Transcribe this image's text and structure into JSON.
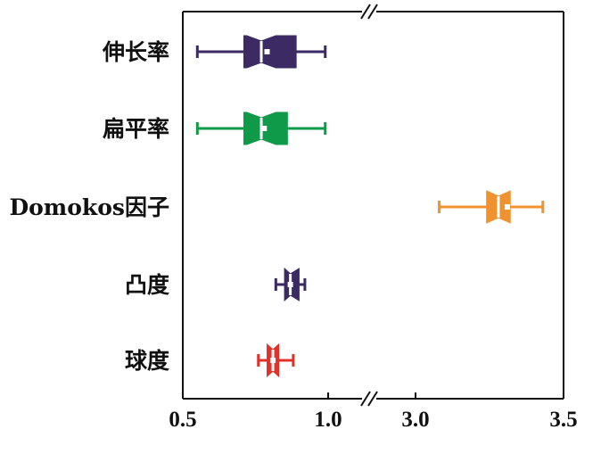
{
  "chart_data": {
    "type": "boxplot",
    "orientation": "horizontal",
    "title": "",
    "xlabel": "",
    "ylabel": "",
    "x_axis_break": {
      "from": 1.0,
      "to": 3.0
    },
    "x_segments": [
      {
        "range": [
          0.5,
          1.0
        ]
      },
      {
        "range": [
          3.0,
          3.5
        ]
      }
    ],
    "x_ticks": [
      {
        "value": 0.5,
        "label": "0.5"
      },
      {
        "value": 1.0,
        "label": "1.0"
      },
      {
        "value": 3.0,
        "label": "3.0"
      },
      {
        "value": 3.5,
        "label": "3.5"
      }
    ],
    "categories": [
      "伸长率",
      "扁平率",
      "Domokos因子",
      "凸度",
      "球度"
    ],
    "series": [
      {
        "category": "伸长率",
        "color": "#3b2a63",
        "min": 0.55,
        "q1": 0.71,
        "median": 0.77,
        "q3": 0.89,
        "max": 0.99,
        "mean": 0.79
      },
      {
        "category": "扁平率",
        "color": "#0f9a4a",
        "min": 0.55,
        "q1": 0.71,
        "median": 0.77,
        "q3": 0.86,
        "max": 0.99,
        "mean": 0.78
      },
      {
        "category": "Domokos因子",
        "color": "#f0922f",
        "min": 3.08,
        "q1": 3.24,
        "median": 3.28,
        "q3": 3.32,
        "max": 3.43,
        "mean": 3.31
      },
      {
        "category": "凸度",
        "color": "#3b2a63",
        "min": 0.82,
        "q1": 0.85,
        "median": 0.87,
        "q3": 0.9,
        "max": 0.92,
        "mean": 0.87
      },
      {
        "category": "球度",
        "color": "#e0312b",
        "min": 0.76,
        "q1": 0.79,
        "median": 0.81,
        "q3": 0.83,
        "max": 0.88,
        "mean": 0.81
      }
    ],
    "grid": false,
    "legend": "none"
  }
}
